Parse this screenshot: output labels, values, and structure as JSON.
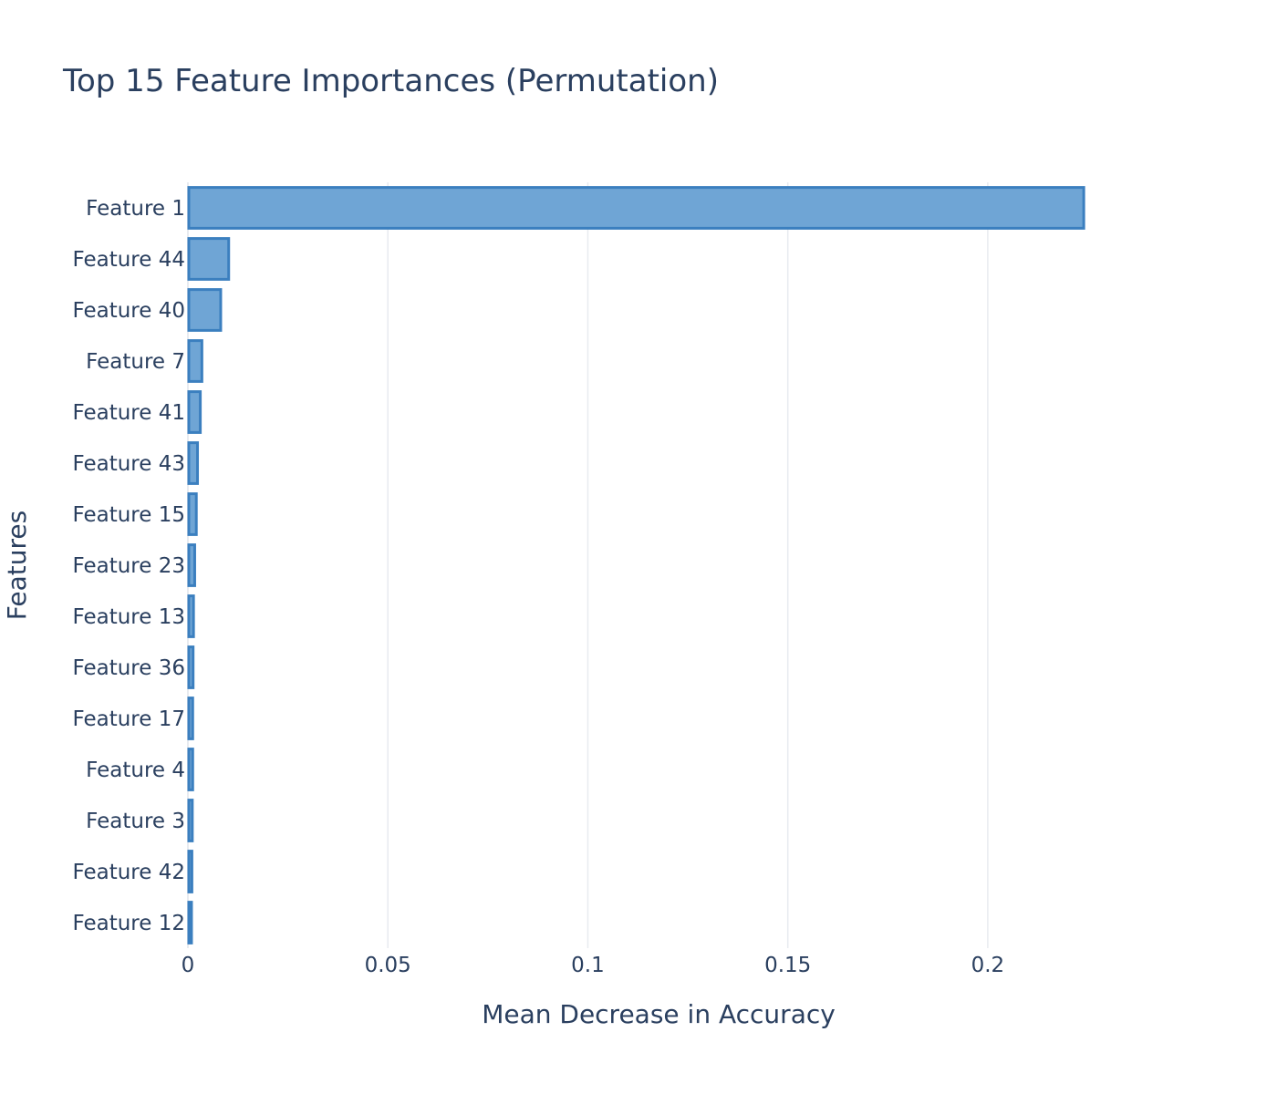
{
  "chart_data": {
    "type": "bar",
    "orientation": "horizontal",
    "title": "Top 15 Feature Importances (Permutation)",
    "xlabel": "Mean Decrease in Accuracy",
    "ylabel": "Features",
    "categories": [
      "Feature 1",
      "Feature 44",
      "Feature 40",
      "Feature 7",
      "Feature 41",
      "Feature 43",
      "Feature 15",
      "Feature 23",
      "Feature 13",
      "Feature 36",
      "Feature 17",
      "Feature 4",
      "Feature 3",
      "Feature 42",
      "Feature 12"
    ],
    "values": [
      0.224,
      0.0102,
      0.0082,
      0.0035,
      0.0031,
      0.0024,
      0.0021,
      0.0017,
      0.0014,
      0.0013,
      0.0012,
      0.0012,
      0.0011,
      0.001,
      0.0009
    ],
    "xlim": [
      0,
      0.2486
    ],
    "xticks": [
      0,
      0.05,
      0.1,
      0.15,
      0.2
    ],
    "xtick_labels": [
      "0",
      "0.05",
      "0.1",
      "0.15",
      "0.2"
    ],
    "grid": true,
    "bar_fill": "#6fa5d5",
    "bar_edge": "#3b7fbf",
    "text_color": "#2a3f5f",
    "grid_color": "#e8ebf0"
  }
}
